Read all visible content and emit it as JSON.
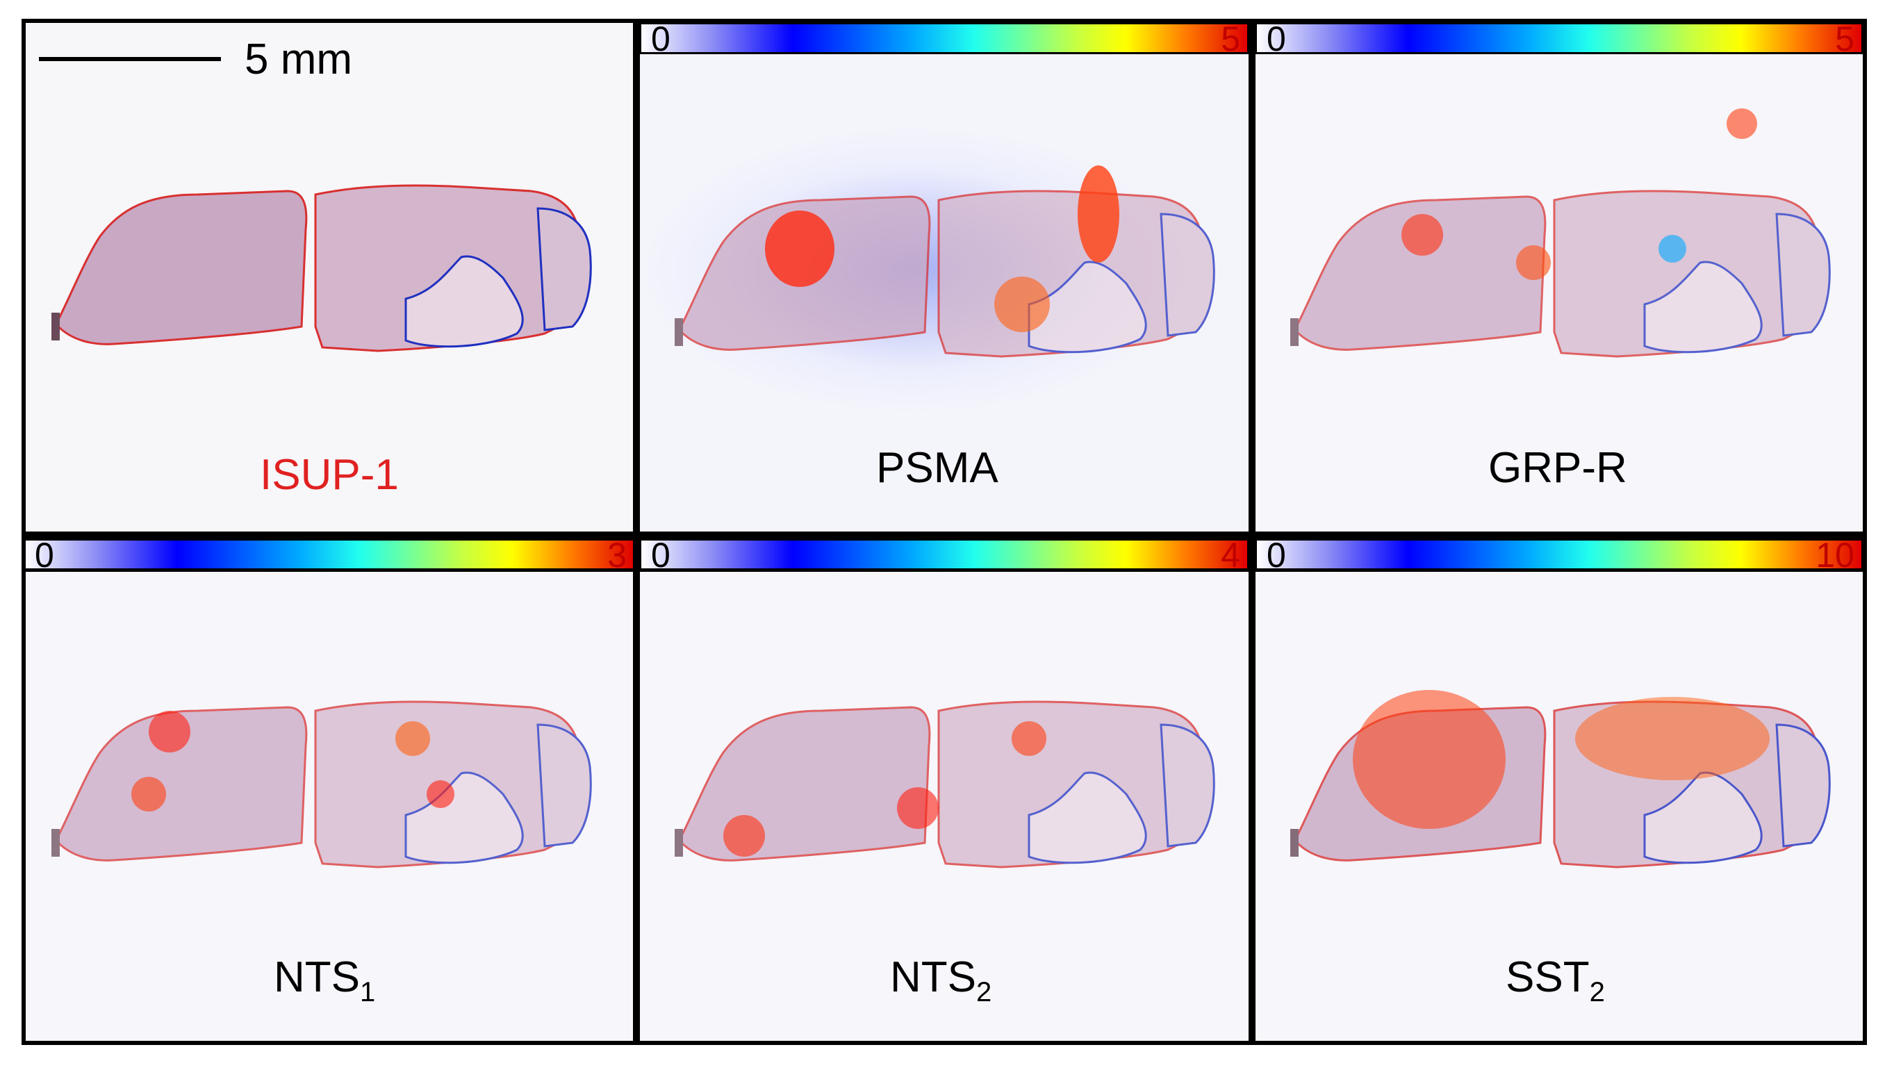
{
  "scale_bar": {
    "label": "5 mm"
  },
  "panels": {
    "he": {
      "label": "ISUP-1",
      "label_color": "#e02020"
    },
    "psma": {
      "label": "PSMA",
      "cbar_min": "0",
      "cbar_max": "5"
    },
    "grpr": {
      "label": "GRP-R",
      "cbar_min": "0",
      "cbar_max": "5"
    },
    "nts1": {
      "label_main": "NTS",
      "label_sub": "1",
      "cbar_min": "0",
      "cbar_max": "3"
    },
    "nts2": {
      "label_main": "NTS",
      "label_sub": "2",
      "cbar_min": "0",
      "cbar_max": "4"
    },
    "sst2": {
      "label_main": "SST",
      "label_sub": "2",
      "cbar_min": "0",
      "cbar_max": "10"
    }
  },
  "colors": {
    "tumor_outline": "#d83030",
    "region_outline": "#2030c0",
    "tissue": "#c7a0bd"
  }
}
